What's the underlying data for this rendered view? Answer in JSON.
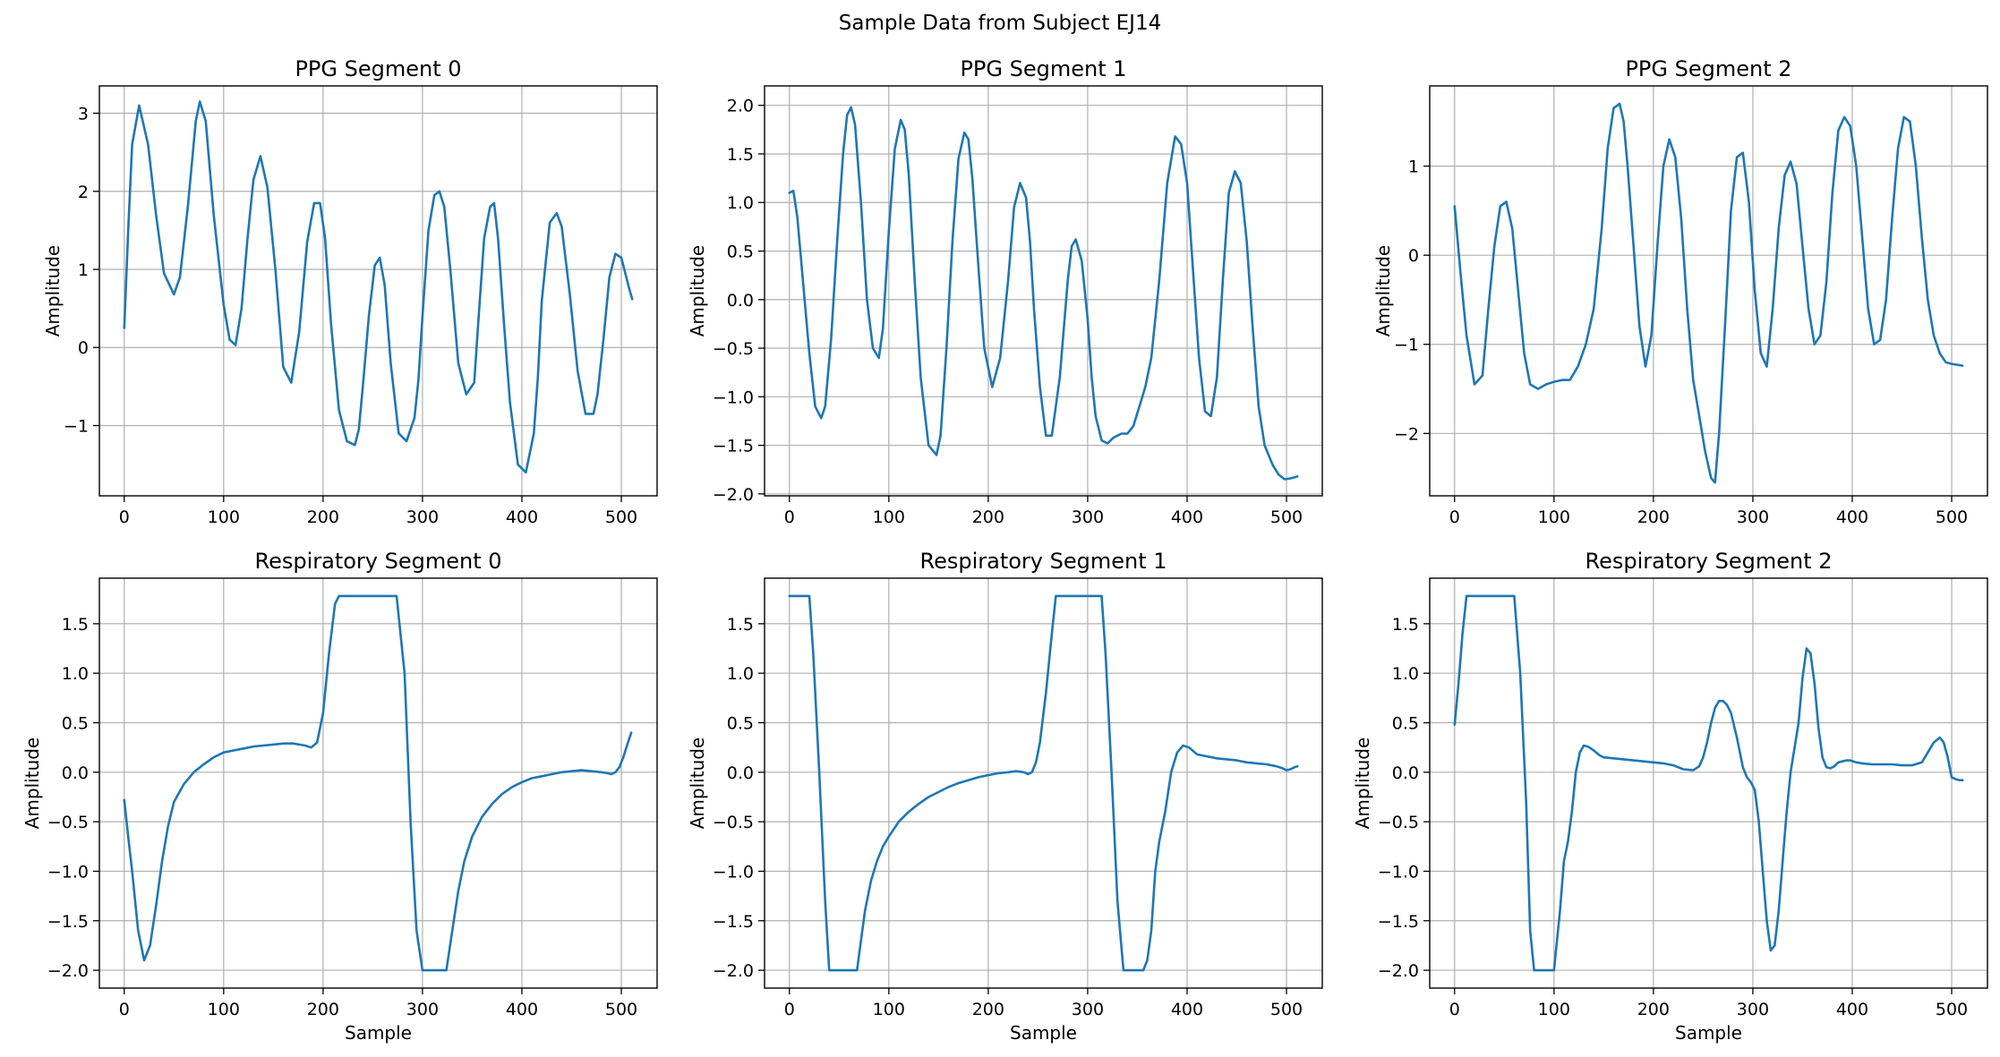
{
  "figure": {
    "suptitle": "Sample Data from Subject EJ14"
  },
  "colors": {
    "line": "#1f77b4",
    "grid": "#b0b0b0"
  },
  "chart_data": [
    {
      "type": "line",
      "title": "PPG Segment 0",
      "xlabel": "",
      "ylabel": "Amplitude",
      "xlim": [
        -25,
        536
      ],
      "ylim": [
        -1.9,
        3.35
      ],
      "xticks": [
        0,
        100,
        200,
        300,
        400,
        500
      ],
      "yticks": [
        -1,
        0,
        1,
        2,
        3
      ],
      "grid": true,
      "x": [
        0,
        4,
        8,
        15,
        24,
        32,
        40,
        50,
        56,
        64,
        72,
        76,
        82,
        90,
        100,
        106,
        112,
        118,
        124,
        130,
        137,
        144,
        152,
        160,
        168,
        176,
        184,
        191,
        197,
        202,
        208,
        216,
        224,
        232,
        236,
        240,
        246,
        252,
        257,
        262,
        268,
        276,
        284,
        292,
        296,
        300,
        306,
        312,
        317,
        322,
        328,
        336,
        344,
        352,
        356,
        362,
        368,
        372,
        376,
        382,
        388,
        396,
        404,
        412,
        416,
        420,
        428,
        435,
        440,
        448,
        456,
        464,
        472,
        476,
        482,
        488,
        494,
        500,
        504,
        508,
        511
      ],
      "y": [
        0.25,
        1.5,
        2.6,
        3.1,
        2.6,
        1.7,
        0.95,
        0.68,
        0.9,
        1.8,
        2.9,
        3.15,
        2.9,
        1.7,
        0.55,
        0.1,
        0.03,
        0.5,
        1.4,
        2.15,
        2.45,
        2.05,
        1.0,
        -0.25,
        -0.45,
        0.2,
        1.35,
        1.85,
        1.85,
        1.4,
        0.3,
        -0.8,
        -1.2,
        -1.25,
        -1.05,
        -0.5,
        0.4,
        1.05,
        1.15,
        0.8,
        -0.2,
        -1.1,
        -1.2,
        -0.9,
        -0.4,
        0.4,
        1.5,
        1.95,
        2.0,
        1.8,
        1.0,
        -0.2,
        -0.6,
        -0.45,
        0.3,
        1.4,
        1.8,
        1.85,
        1.4,
        0.3,
        -0.7,
        -1.5,
        -1.6,
        -1.1,
        -0.4,
        0.6,
        1.6,
        1.72,
        1.55,
        0.7,
        -0.3,
        -0.85,
        -0.85,
        -0.6,
        0.1,
        0.9,
        1.2,
        1.15,
        0.95,
        0.75,
        0.62
      ]
    },
    {
      "type": "line",
      "title": "PPG Segment 1",
      "xlabel": "",
      "ylabel": "Amplitude",
      "xlim": [
        -25,
        536
      ],
      "ylim": [
        -2.02,
        2.2
      ],
      "xticks": [
        0,
        100,
        200,
        300,
        400,
        500
      ],
      "yticks": [
        -2.0,
        -1.5,
        -1.0,
        -0.5,
        0.0,
        0.5,
        1.0,
        1.5,
        2.0
      ],
      "grid": true,
      "x": [
        0,
        4,
        8,
        14,
        20,
        26,
        32,
        36,
        42,
        48,
        54,
        58,
        62,
        66,
        72,
        78,
        84,
        90,
        94,
        100,
        106,
        112,
        116,
        120,
        126,
        132,
        140,
        148,
        152,
        158,
        164,
        170,
        176,
        180,
        184,
        190,
        196,
        204,
        212,
        220,
        226,
        232,
        238,
        242,
        246,
        252,
        258,
        264,
        272,
        280,
        284,
        288,
        294,
        300,
        304,
        308,
        314,
        320,
        326,
        334,
        340,
        346,
        352,
        358,
        364,
        372,
        380,
        388,
        394,
        400,
        406,
        412,
        418,
        424,
        430,
        436,
        442,
        448,
        454,
        460,
        466,
        472,
        478,
        482,
        486,
        492,
        498,
        504,
        508,
        511
      ],
      "y": [
        1.1,
        1.12,
        0.85,
        0.15,
        -0.55,
        -1.1,
        -1.22,
        -1.1,
        -0.4,
        0.6,
        1.5,
        1.9,
        1.98,
        1.8,
        1.0,
        0.0,
        -0.5,
        -0.6,
        -0.3,
        0.7,
        1.55,
        1.85,
        1.75,
        1.3,
        0.2,
        -0.8,
        -1.5,
        -1.6,
        -1.4,
        -0.5,
        0.6,
        1.45,
        1.72,
        1.65,
        1.25,
        0.35,
        -0.5,
        -0.9,
        -0.6,
        0.2,
        0.95,
        1.2,
        1.05,
        0.6,
        -0.1,
        -0.9,
        -1.4,
        -1.4,
        -0.8,
        0.2,
        0.55,
        0.62,
        0.4,
        -0.2,
        -0.8,
        -1.2,
        -1.45,
        -1.48,
        -1.42,
        -1.38,
        -1.38,
        -1.3,
        -1.1,
        -0.9,
        -0.6,
        0.2,
        1.2,
        1.68,
        1.6,
        1.2,
        0.3,
        -0.6,
        -1.15,
        -1.2,
        -0.8,
        0.2,
        1.1,
        1.32,
        1.2,
        0.6,
        -0.3,
        -1.1,
        -1.5,
        -1.6,
        -1.7,
        -1.8,
        -1.85,
        -1.84,
        -1.83,
        -1.82
      ]
    },
    {
      "type": "line",
      "title": "PPG Segment 2",
      "xlabel": "",
      "ylabel": "Amplitude",
      "xlim": [
        -25,
        536
      ],
      "ylim": [
        -2.7,
        1.9
      ],
      "xticks": [
        0,
        100,
        200,
        300,
        400,
        500
      ],
      "yticks": [
        -2,
        -1,
        0,
        1
      ],
      "grid": true,
      "x": [
        0,
        6,
        12,
        20,
        28,
        34,
        40,
        46,
        52,
        58,
        64,
        70,
        76,
        84,
        92,
        100,
        108,
        116,
        124,
        132,
        140,
        148,
        154,
        160,
        166,
        170,
        174,
        180,
        186,
        192,
        198,
        204,
        210,
        216,
        222,
        228,
        234,
        240,
        246,
        252,
        258,
        262,
        266,
        272,
        278,
        284,
        290,
        296,
        302,
        308,
        314,
        320,
        326,
        332,
        338,
        344,
        350,
        356,
        362,
        368,
        374,
        380,
        386,
        392,
        398,
        404,
        410,
        416,
        422,
        428,
        434,
        440,
        446,
        452,
        458,
        464,
        470,
        476,
        482,
        488,
        494,
        500,
        506,
        511
      ],
      "y": [
        0.55,
        -0.2,
        -0.9,
        -1.45,
        -1.35,
        -0.6,
        0.1,
        0.55,
        0.6,
        0.3,
        -0.4,
        -1.1,
        -1.45,
        -1.5,
        -1.45,
        -1.42,
        -1.4,
        -1.4,
        -1.25,
        -1.0,
        -0.6,
        0.3,
        1.2,
        1.65,
        1.7,
        1.5,
        1.0,
        0.1,
        -0.8,
        -1.25,
        -0.9,
        0.1,
        1.0,
        1.3,
        1.1,
        0.4,
        -0.6,
        -1.4,
        -1.8,
        -2.2,
        -2.5,
        -2.55,
        -2.0,
        -0.8,
        0.5,
        1.1,
        1.15,
        0.6,
        -0.4,
        -1.1,
        -1.25,
        -0.6,
        0.3,
        0.9,
        1.05,
        0.8,
        0.1,
        -0.6,
        -1.0,
        -0.9,
        -0.3,
        0.7,
        1.4,
        1.55,
        1.45,
        1.0,
        0.2,
        -0.6,
        -1.0,
        -0.95,
        -0.5,
        0.4,
        1.2,
        1.55,
        1.5,
        1.0,
        0.2,
        -0.5,
        -0.9,
        -1.1,
        -1.2,
        -1.22,
        -1.23,
        -1.24
      ]
    },
    {
      "type": "line",
      "title": "Respiratory Segment 0",
      "xlabel": "Sample",
      "ylabel": "Amplitude",
      "xlim": [
        -25,
        536
      ],
      "ylim": [
        -2.18,
        1.96
      ],
      "xticks": [
        0,
        100,
        200,
        300,
        400,
        500
      ],
      "yticks": [
        -2.0,
        -1.5,
        -1.0,
        -0.5,
        0.0,
        0.5,
        1.0,
        1.5
      ],
      "grid": true,
      "x": [
        0,
        4,
        8,
        14,
        20,
        26,
        32,
        38,
        44,
        50,
        60,
        70,
        80,
        90,
        100,
        110,
        120,
        130,
        140,
        150,
        160,
        170,
        176,
        182,
        188,
        194,
        200,
        206,
        212,
        216,
        240,
        260,
        274,
        282,
        288,
        294,
        300,
        312,
        324,
        330,
        336,
        342,
        350,
        360,
        370,
        380,
        390,
        400,
        410,
        420,
        430,
        440,
        450,
        460,
        470,
        480,
        486,
        490,
        494,
        498,
        502,
        506,
        510
      ],
      "y": [
        -0.28,
        -0.65,
        -1.0,
        -1.6,
        -1.9,
        -1.75,
        -1.35,
        -0.9,
        -0.55,
        -0.3,
        -0.12,
        0.0,
        0.08,
        0.15,
        0.2,
        0.22,
        0.24,
        0.26,
        0.27,
        0.28,
        0.29,
        0.29,
        0.28,
        0.27,
        0.25,
        0.3,
        0.6,
        1.2,
        1.7,
        1.78,
        1.78,
        1.78,
        1.78,
        1.0,
        -0.5,
        -1.6,
        -2.0,
        -2.0,
        -2.0,
        -1.6,
        -1.2,
        -0.9,
        -0.65,
        -0.45,
        -0.32,
        -0.22,
        -0.15,
        -0.1,
        -0.06,
        -0.04,
        -0.02,
        0.0,
        0.01,
        0.02,
        0.01,
        0.0,
        -0.01,
        -0.02,
        0.0,
        0.05,
        0.15,
        0.28,
        0.4
      ]
    },
    {
      "type": "line",
      "title": "Respiratory Segment 1",
      "xlabel": "Sample",
      "ylabel": "Amplitude",
      "xlim": [
        -25,
        536
      ],
      "ylim": [
        -2.18,
        1.96
      ],
      "xticks": [
        0,
        100,
        200,
        300,
        400,
        500
      ],
      "yticks": [
        -2.0,
        -1.5,
        -1.0,
        -0.5,
        0.0,
        0.5,
        1.0,
        1.5
      ],
      "grid": true,
      "x": [
        0,
        8,
        16,
        20,
        24,
        30,
        36,
        40,
        50,
        60,
        68,
        72,
        76,
        82,
        88,
        94,
        100,
        110,
        120,
        130,
        140,
        150,
        160,
        170,
        180,
        190,
        200,
        210,
        220,
        228,
        236,
        240,
        244,
        248,
        252,
        258,
        264,
        268,
        280,
        290,
        300,
        314,
        318,
        324,
        330,
        336,
        346,
        356,
        360,
        364,
        368,
        372,
        378,
        384,
        390,
        396,
        402,
        410,
        420,
        430,
        440,
        450,
        460,
        470,
        480,
        490,
        496,
        500,
        504,
        508,
        511
      ],
      "y": [
        1.78,
        1.78,
        1.78,
        1.78,
        1.2,
        0.0,
        -1.3,
        -2.0,
        -2.0,
        -2.0,
        -2.0,
        -1.7,
        -1.4,
        -1.1,
        -0.9,
        -0.75,
        -0.65,
        -0.5,
        -0.4,
        -0.32,
        -0.25,
        -0.2,
        -0.15,
        -0.11,
        -0.08,
        -0.05,
        -0.03,
        -0.01,
        0.0,
        0.01,
        0.0,
        -0.02,
        0.0,
        0.1,
        0.3,
        0.8,
        1.4,
        1.78,
        1.78,
        1.78,
        1.78,
        1.78,
        1.2,
        0.0,
        -1.3,
        -2.0,
        -2.0,
        -2.0,
        -1.9,
        -1.6,
        -1.0,
        -0.7,
        -0.4,
        0.0,
        0.2,
        0.27,
        0.25,
        0.18,
        0.16,
        0.14,
        0.13,
        0.12,
        0.1,
        0.09,
        0.08,
        0.06,
        0.04,
        0.02,
        0.03,
        0.05,
        0.06
      ]
    },
    {
      "type": "line",
      "title": "Respiratory Segment 2",
      "xlabel": "Sample",
      "ylabel": "Amplitude",
      "xlim": [
        -25,
        536
      ],
      "ylim": [
        -2.18,
        1.96
      ],
      "xticks": [
        0,
        100,
        200,
        300,
        400,
        500
      ],
      "yticks": [
        -2.0,
        -1.5,
        -1.0,
        -0.5,
        0.0,
        0.5,
        1.0,
        1.5
      ],
      "grid": true,
      "x": [
        0,
        4,
        8,
        12,
        20,
        40,
        60,
        66,
        72,
        76,
        80,
        90,
        100,
        106,
        110,
        114,
        118,
        122,
        126,
        130,
        134,
        140,
        146,
        150,
        160,
        170,
        180,
        190,
        200,
        210,
        220,
        230,
        240,
        246,
        250,
        254,
        258,
        262,
        266,
        270,
        274,
        278,
        284,
        290,
        294,
        298,
        302,
        306,
        310,
        314,
        318,
        322,
        326,
        330,
        334,
        338,
        342,
        346,
        350,
        354,
        358,
        362,
        366,
        370,
        374,
        378,
        382,
        386,
        390,
        394,
        398,
        404,
        410,
        420,
        430,
        440,
        450,
        460,
        470,
        476,
        482,
        488,
        492,
        496,
        500,
        504,
        508,
        511
      ],
      "y": [
        0.48,
        0.9,
        1.4,
        1.78,
        1.78,
        1.78,
        1.78,
        1.0,
        -0.3,
        -1.6,
        -2.0,
        -2.0,
        -2.0,
        -1.4,
        -0.9,
        -0.7,
        -0.4,
        0.0,
        0.2,
        0.27,
        0.26,
        0.22,
        0.17,
        0.15,
        0.14,
        0.13,
        0.12,
        0.11,
        0.1,
        0.09,
        0.07,
        0.03,
        0.02,
        0.06,
        0.15,
        0.3,
        0.5,
        0.65,
        0.72,
        0.72,
        0.68,
        0.6,
        0.35,
        0.05,
        -0.05,
        -0.1,
        -0.18,
        -0.5,
        -1.0,
        -1.5,
        -1.8,
        -1.75,
        -1.4,
        -0.9,
        -0.4,
        0.0,
        0.25,
        0.5,
        0.95,
        1.25,
        1.2,
        0.9,
        0.45,
        0.15,
        0.05,
        0.04,
        0.06,
        0.1,
        0.11,
        0.12,
        0.12,
        0.1,
        0.09,
        0.08,
        0.08,
        0.08,
        0.07,
        0.07,
        0.1,
        0.2,
        0.3,
        0.35,
        0.3,
        0.15,
        -0.05,
        -0.07,
        -0.08,
        -0.08
      ]
    }
  ]
}
